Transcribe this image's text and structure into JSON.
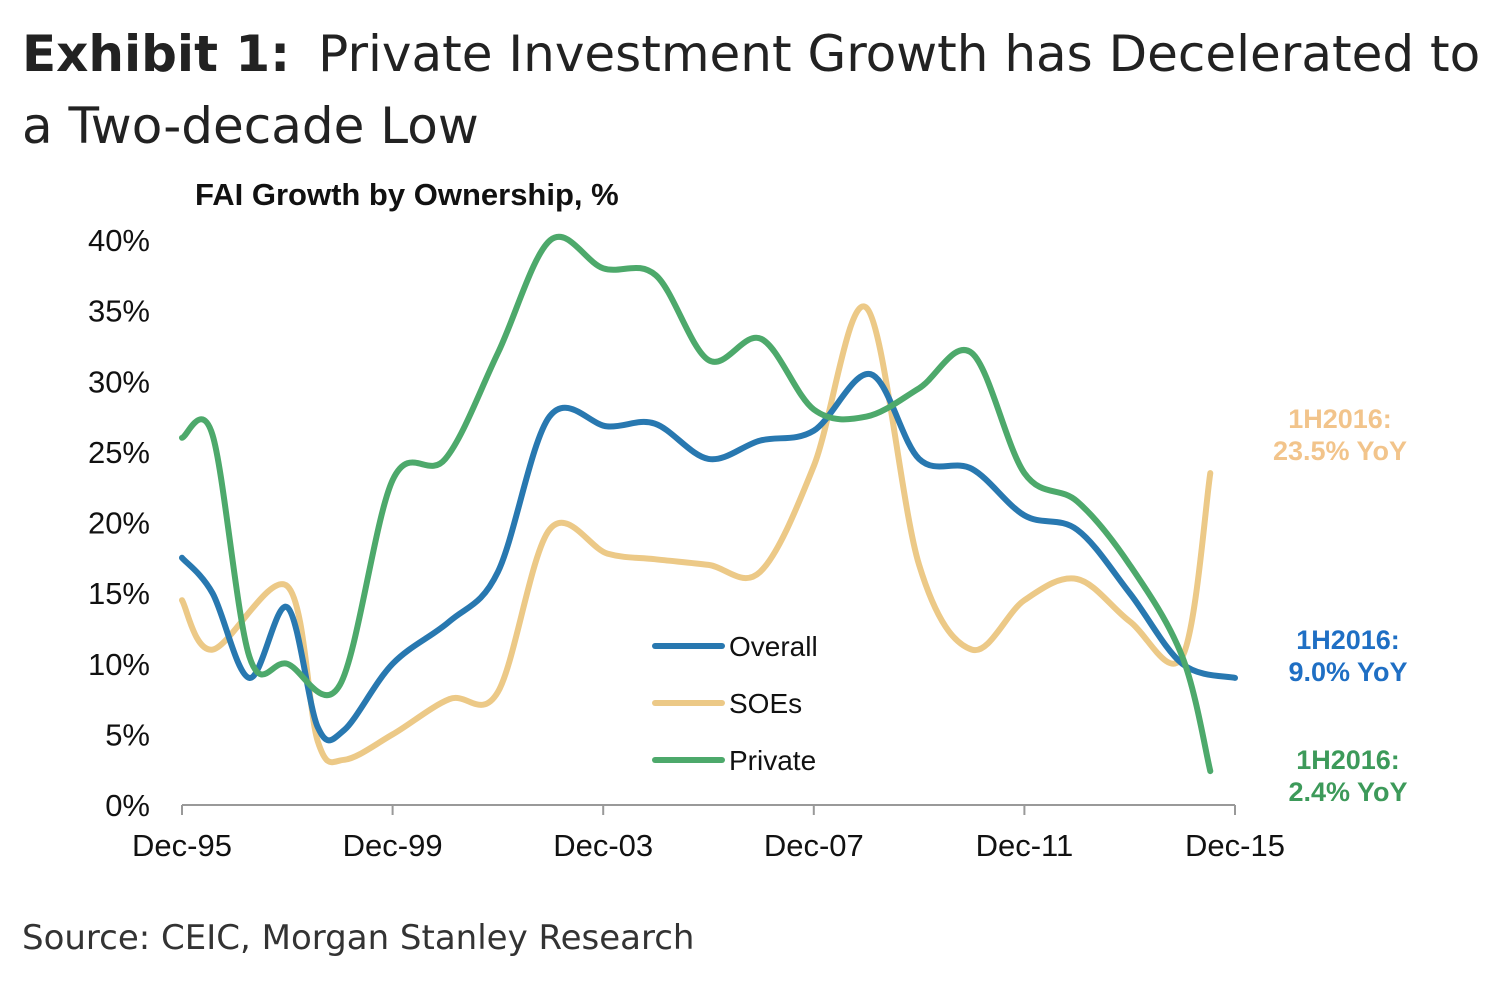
{
  "header": {
    "exhibit_label": "Exhibit 1:",
    "title": "Private Investment Growth has Decelerated to a Two-decade Low"
  },
  "footer": {
    "source": "Source: CEIC, Morgan Stanley Research"
  },
  "chart_data": {
    "type": "line",
    "title": "FAI Growth by Ownership, %",
    "xlabel": "",
    "ylabel": "",
    "x_start": "Dec-95",
    "x_ticks": [
      "Dec-95",
      "Dec-99",
      "Dec-03",
      "Dec-07",
      "Dec-11",
      "Dec-15"
    ],
    "y_ticks": [
      "0%",
      "5%",
      "10%",
      "15%",
      "20%",
      "25%",
      "30%",
      "35%",
      "40%"
    ],
    "ylim": [
      0,
      40
    ],
    "grid": false,
    "legend_position": "center-bottom",
    "series": [
      {
        "name": "Overall",
        "color": "#2878b0",
        "points": [
          [
            1995.92,
            17.5
          ],
          [
            1996.5,
            15.0
          ],
          [
            1997.2,
            9.0
          ],
          [
            1997.92,
            14.0
          ],
          [
            1998.5,
            5.5
          ],
          [
            1999.0,
            5.3
          ],
          [
            1999.92,
            10.0
          ],
          [
            2001.0,
            13.0
          ],
          [
            2001.92,
            16.5
          ],
          [
            2002.9,
            27.5
          ],
          [
            2004.0,
            26.8
          ],
          [
            2004.9,
            27.0
          ],
          [
            2005.92,
            24.5
          ],
          [
            2006.9,
            25.8
          ],
          [
            2007.92,
            26.5
          ],
          [
            2009.0,
            30.5
          ],
          [
            2009.92,
            24.5
          ],
          [
            2010.92,
            23.8
          ],
          [
            2011.92,
            20.5
          ],
          [
            2012.92,
            19.5
          ],
          [
            2013.92,
            15.0
          ],
          [
            2014.92,
            10.0
          ],
          [
            2015.92,
            9.0
          ]
        ],
        "end_label": "1H2016:\n9.0% YoY"
      },
      {
        "name": "SOEs",
        "color": "#ecc987",
        "points": [
          [
            1995.92,
            14.5
          ],
          [
            1996.5,
            11.0
          ],
          [
            1997.92,
            15.5
          ],
          [
            1998.5,
            4.5
          ],
          [
            1999.0,
            3.2
          ],
          [
            1999.92,
            5.0
          ],
          [
            2001.0,
            7.5
          ],
          [
            2001.92,
            8.0
          ],
          [
            2002.9,
            19.5
          ],
          [
            2004.0,
            17.8
          ],
          [
            2004.9,
            17.4
          ],
          [
            2005.92,
            17.0
          ],
          [
            2006.9,
            16.5
          ],
          [
            2007.92,
            24.0
          ],
          [
            2008.92,
            35.2
          ],
          [
            2009.92,
            17.0
          ],
          [
            2010.92,
            11.0
          ],
          [
            2011.92,
            14.5
          ],
          [
            2012.92,
            16.0
          ],
          [
            2013.92,
            13.0
          ],
          [
            2014.92,
            10.5
          ],
          [
            2015.45,
            23.5
          ]
        ],
        "end_label": "1H2016:\n23.5% YoY"
      },
      {
        "name": "Private",
        "color": "#4da96b",
        "points": [
          [
            1995.92,
            26.0
          ],
          [
            1996.5,
            26.2
          ],
          [
            1997.2,
            10.5
          ],
          [
            1997.92,
            10.0
          ],
          [
            1998.92,
            8.5
          ],
          [
            1999.92,
            23.0
          ],
          [
            2000.92,
            24.5
          ],
          [
            2001.92,
            32.0
          ],
          [
            2002.92,
            40.0
          ],
          [
            2003.92,
            38.0
          ],
          [
            2004.92,
            37.5
          ],
          [
            2005.92,
            31.5
          ],
          [
            2006.92,
            33.0
          ],
          [
            2007.92,
            28.0
          ],
          [
            2008.92,
            27.5
          ],
          [
            2009.92,
            29.5
          ],
          [
            2010.92,
            32.0
          ],
          [
            2011.92,
            23.5
          ],
          [
            2012.92,
            21.5
          ],
          [
            2013.92,
            17.0
          ],
          [
            2014.92,
            10.5
          ],
          [
            2015.45,
            2.4
          ]
        ],
        "end_label": "1H2016:\n2.4% YoY"
      }
    ]
  }
}
